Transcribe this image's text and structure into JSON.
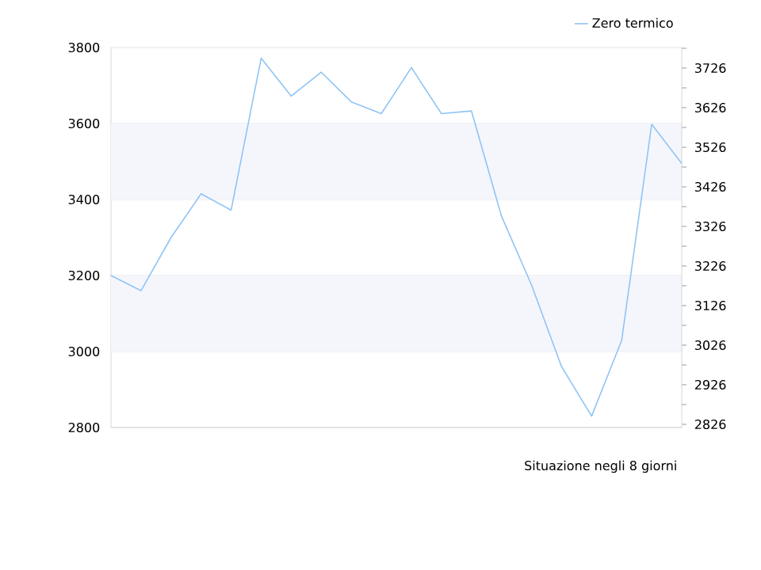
{
  "chart_data": {
    "type": "line",
    "xlabel": "Situazione negli 8 giorni",
    "categories": [
      null,
      null,
      null,
      null,
      null,
      null,
      null,
      null,
      null,
      null,
      null,
      null,
      null,
      null,
      null,
      null,
      null,
      null,
      null,
      null
    ],
    "series": [
      {
        "name": "Zero termico",
        "color": "#90c4f4",
        "values": [
          3200,
          3160,
          3300,
          3415,
          3372,
          3772,
          3672,
          3735,
          3657,
          3626,
          3747,
          3626,
          3633,
          3356,
          3175,
          2960,
          2830,
          3029,
          3598,
          3495
        ]
      }
    ],
    "ylim": [
      2800,
      3800
    ],
    "yticks": [
      2800,
      3000,
      3200,
      3400,
      3600,
      3800
    ],
    "y2lim": [
      2818,
      3778
    ],
    "y2ticks": [
      2826,
      {
        "value": 2876,
        "label": null
      },
      2926,
      {
        "value": 2976,
        "label": null
      },
      3026,
      {
        "value": 3076,
        "label": null
      },
      3126,
      {
        "value": 3176,
        "label": null
      },
      3226,
      {
        "value": 3276,
        "label": null
      },
      3326,
      {
        "value": 3376,
        "label": null
      },
      3426,
      {
        "value": 3476,
        "label": null
      },
      3526,
      {
        "value": 3576,
        "label": null
      },
      3626,
      {
        "value": 3676,
        "label": null
      },
      3726,
      {
        "value": 3776,
        "label": null
      }
    ],
    "bands": [
      {
        "axis": "y",
        "from": 3000,
        "to": 3200,
        "color": "#f5f6fc"
      },
      {
        "axis": "y",
        "from": 3400,
        "to": 3600,
        "color": "#f5f6fc"
      }
    ],
    "grid": "y",
    "legend": "top right",
    "line_style": "solid"
  }
}
